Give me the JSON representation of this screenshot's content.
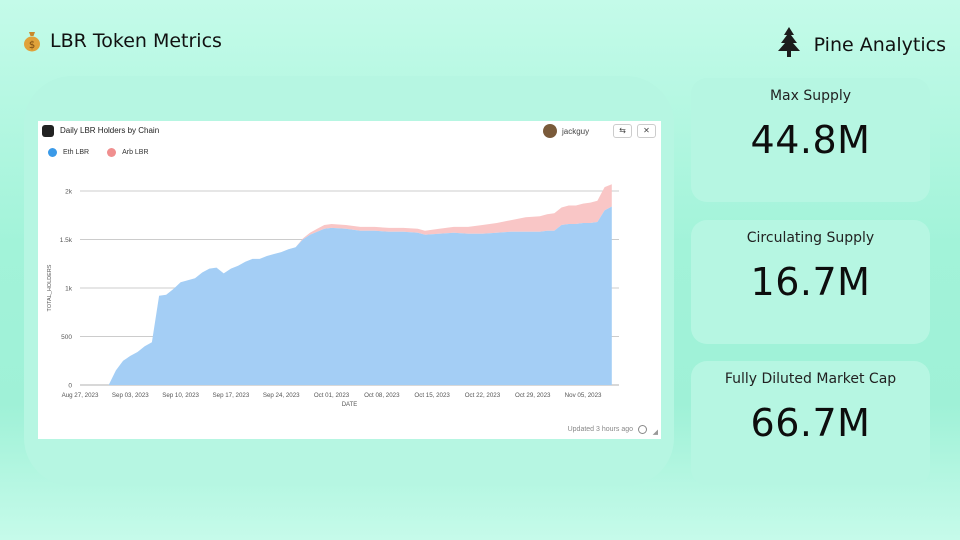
{
  "header": {
    "title": "LBR Token Metrics",
    "brand": "Pine Analytics",
    "icons": [
      "money-bag-icon",
      "pine-tree-icon"
    ]
  },
  "chart_card": {
    "title": "Daily LBR Holders by Chain",
    "user": "jackguy",
    "updated": "Updated 3 hours ago"
  },
  "stats": [
    {
      "label": "Max Supply",
      "value": "44.8M"
    },
    {
      "label": "Circulating Supply",
      "value": "16.7M"
    },
    {
      "label": "Fully Diluted Market Cap",
      "value": "66.7M"
    }
  ],
  "colors": {
    "eth": "#a4cef5",
    "arb": "#f9c6c6",
    "eth_dot": "#3b9ae8",
    "arb_dot": "#f08f8f",
    "panel": "#b6f6e2"
  },
  "chart_data": {
    "type": "area",
    "stacked": true,
    "title": "Daily LBR Holders by Chain",
    "xlabel": "DATE",
    "ylabel": "TOTAL_HOLDERS",
    "ylim": [
      0,
      2000
    ],
    "yticks": [
      0,
      500,
      1000,
      1500,
      2000
    ],
    "ytick_labels": [
      "0",
      "500",
      "1k",
      "1.5k",
      "2k"
    ],
    "xlim": [
      "2023-08-27",
      "2023-11-10"
    ],
    "xtick_labels": [
      "Aug 27, 2023",
      "Sep 03, 2023",
      "Sep 10, 2023",
      "Sep 17, 2023",
      "Sep 24, 2023",
      "Oct 01, 2023",
      "Oct 08, 2023",
      "Oct 15, 2023",
      "Oct 22, 2023",
      "Oct 29, 2023",
      "Nov 05, 2023"
    ],
    "grid": true,
    "legend_position": "top-left",
    "x": [
      "2023-08-27",
      "2023-08-31",
      "2023-09-01",
      "2023-09-02",
      "2023-09-03",
      "2023-09-04",
      "2023-09-05",
      "2023-09-06",
      "2023-09-07",
      "2023-09-08",
      "2023-09-09",
      "2023-09-10",
      "2023-09-11",
      "2023-09-12",
      "2023-09-13",
      "2023-09-14",
      "2023-09-15",
      "2023-09-16",
      "2023-09-17",
      "2023-09-18",
      "2023-09-19",
      "2023-09-20",
      "2023-09-21",
      "2023-09-22",
      "2023-09-23",
      "2023-09-24",
      "2023-09-25",
      "2023-09-26",
      "2023-09-27",
      "2023-09-28",
      "2023-09-29",
      "2023-09-30",
      "2023-10-01",
      "2023-10-03",
      "2023-10-05",
      "2023-10-07",
      "2023-10-09",
      "2023-10-11",
      "2023-10-13",
      "2023-10-14",
      "2023-10-16",
      "2023-10-18",
      "2023-10-20",
      "2023-10-22",
      "2023-10-24",
      "2023-10-26",
      "2023-10-28",
      "2023-10-30",
      "2023-10-31",
      "2023-11-01",
      "2023-11-02",
      "2023-11-03",
      "2023-11-04",
      "2023-11-05",
      "2023-11-06",
      "2023-11-07",
      "2023-11-08",
      "2023-11-09"
    ],
    "series": [
      {
        "name": "Eth LBR",
        "values": [
          0,
          0,
          150,
          250,
          300,
          340,
          400,
          440,
          920,
          930,
          990,
          1060,
          1080,
          1100,
          1160,
          1200,
          1210,
          1150,
          1200,
          1230,
          1270,
          1300,
          1300,
          1330,
          1350,
          1370,
          1400,
          1420,
          1500,
          1550,
          1580,
          1610,
          1620,
          1610,
          1590,
          1590,
          1580,
          1580,
          1570,
          1550,
          1560,
          1570,
          1560,
          1560,
          1570,
          1580,
          1580,
          1580,
          1590,
          1590,
          1650,
          1660,
          1660,
          1670,
          1670,
          1680,
          1800,
          1840
        ]
      },
      {
        "name": "Arb LBR",
        "values": [
          0,
          0,
          0,
          0,
          0,
          0,
          0,
          0,
          0,
          0,
          0,
          0,
          0,
          0,
          0,
          0,
          0,
          0,
          0,
          0,
          0,
          0,
          0,
          0,
          0,
          0,
          0,
          0,
          10,
          20,
          30,
          40,
          40,
          40,
          40,
          40,
          40,
          40,
          40,
          40,
          50,
          60,
          70,
          90,
          100,
          120,
          150,
          160,
          170,
          180,
          180,
          190,
          190,
          200,
          210,
          220,
          240,
          230
        ]
      }
    ]
  }
}
